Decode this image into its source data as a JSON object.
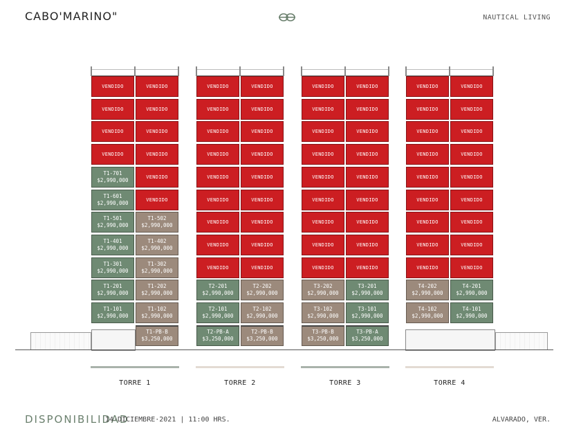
{
  "header": {
    "brand": "CABO'MARINO\"",
    "tagline": "NAUTICAL LIVING",
    "logo_icon": "knot-icon"
  },
  "colors": {
    "sold": "#cc1e22",
    "available_green": "#6f8a73",
    "available_taupe": "#9c8a7c"
  },
  "sold_label": "VENDIDO",
  "towers": [
    {
      "name": "TORRE 1",
      "bar_color": "#a9b2ab",
      "units": [
        [
          {
            "s": "sold"
          },
          {
            "s": "sold"
          }
        ],
        [
          {
            "s": "sold"
          },
          {
            "s": "sold"
          }
        ],
        [
          {
            "s": "sold"
          },
          {
            "s": "sold"
          }
        ],
        [
          {
            "s": "sold"
          },
          {
            "s": "sold"
          }
        ],
        [
          {
            "s": "green",
            "id": "T1-701",
            "price": "$2,990,000"
          },
          {
            "s": "sold"
          }
        ],
        [
          {
            "s": "green",
            "id": "T1-601",
            "price": "$2,990,000"
          },
          {
            "s": "sold"
          }
        ],
        [
          {
            "s": "green",
            "id": "T1-501",
            "price": "$2,990,000"
          },
          {
            "s": "taupe",
            "id": "T1-502",
            "price": "$2,990,000"
          }
        ],
        [
          {
            "s": "green",
            "id": "T1-401",
            "price": "$2,990,000"
          },
          {
            "s": "taupe",
            "id": "T1-402",
            "price": "$2,990,000"
          }
        ],
        [
          {
            "s": "green",
            "id": "T1-301",
            "price": "$2,990,000"
          },
          {
            "s": "taupe",
            "id": "T1-302",
            "price": "$2,990,000"
          }
        ],
        [
          {
            "s": "green",
            "id": "T1-201",
            "price": "$2,990,000"
          },
          {
            "s": "taupe",
            "id": "T1-202",
            "price": "$2,990,000"
          }
        ],
        [
          {
            "s": "green",
            "id": "T1-101",
            "price": "$2,990,000"
          },
          {
            "s": "taupe",
            "id": "T1-102",
            "price": "$2,990,000"
          }
        ],
        [
          {
            "s": "none"
          },
          {
            "s": "taupe",
            "id": "T1-PB-B",
            "price": "$3,250,000"
          }
        ]
      ]
    },
    {
      "name": "TORRE 2",
      "bar_color": "#e3dbd3",
      "units": [
        [
          {
            "s": "sold"
          },
          {
            "s": "sold"
          }
        ],
        [
          {
            "s": "sold"
          },
          {
            "s": "sold"
          }
        ],
        [
          {
            "s": "sold"
          },
          {
            "s": "sold"
          }
        ],
        [
          {
            "s": "sold"
          },
          {
            "s": "sold"
          }
        ],
        [
          {
            "s": "sold"
          },
          {
            "s": "sold"
          }
        ],
        [
          {
            "s": "sold"
          },
          {
            "s": "sold"
          }
        ],
        [
          {
            "s": "sold"
          },
          {
            "s": "sold"
          }
        ],
        [
          {
            "s": "sold"
          },
          {
            "s": "sold"
          }
        ],
        [
          {
            "s": "sold"
          },
          {
            "s": "sold"
          }
        ],
        [
          {
            "s": "green",
            "id": "T2-201",
            "price": "$2,990,000"
          },
          {
            "s": "taupe",
            "id": "T2-202",
            "price": "$2,990,000"
          }
        ],
        [
          {
            "s": "green",
            "id": "T2-101",
            "price": "$2,990,000"
          },
          {
            "s": "taupe",
            "id": "T2-102",
            "price": "$2,990,000"
          }
        ],
        [
          {
            "s": "green",
            "id": "T2-PB-A",
            "price": "$3,250,000"
          },
          {
            "s": "taupe",
            "id": "T2-PB-B",
            "price": "$3,250,000"
          }
        ]
      ]
    },
    {
      "name": "TORRE 3",
      "bar_color": "#a9b2ab",
      "units": [
        [
          {
            "s": "sold"
          },
          {
            "s": "sold"
          }
        ],
        [
          {
            "s": "sold"
          },
          {
            "s": "sold"
          }
        ],
        [
          {
            "s": "sold"
          },
          {
            "s": "sold"
          }
        ],
        [
          {
            "s": "sold"
          },
          {
            "s": "sold"
          }
        ],
        [
          {
            "s": "sold"
          },
          {
            "s": "sold"
          }
        ],
        [
          {
            "s": "sold"
          },
          {
            "s": "sold"
          }
        ],
        [
          {
            "s": "sold"
          },
          {
            "s": "sold"
          }
        ],
        [
          {
            "s": "sold"
          },
          {
            "s": "sold"
          }
        ],
        [
          {
            "s": "sold"
          },
          {
            "s": "sold"
          }
        ],
        [
          {
            "s": "taupe",
            "id": "T3-202",
            "price": "$2,990,000"
          },
          {
            "s": "green",
            "id": "T3-201",
            "price": "$2,990,000"
          }
        ],
        [
          {
            "s": "taupe",
            "id": "T3-102",
            "price": "$2,990,000"
          },
          {
            "s": "green",
            "id": "T3-101",
            "price": "$2,990,000"
          }
        ],
        [
          {
            "s": "taupe",
            "id": "T3-PB-B",
            "price": "$3,250,000"
          },
          {
            "s": "green",
            "id": "T3-PB-A",
            "price": "$3,250,000"
          }
        ]
      ]
    },
    {
      "name": "TORRE 4",
      "bar_color": "#e3dbd3",
      "units": [
        [
          {
            "s": "sold"
          },
          {
            "s": "sold"
          }
        ],
        [
          {
            "s": "sold"
          },
          {
            "s": "sold"
          }
        ],
        [
          {
            "s": "sold"
          },
          {
            "s": "sold"
          }
        ],
        [
          {
            "s": "sold"
          },
          {
            "s": "sold"
          }
        ],
        [
          {
            "s": "sold"
          },
          {
            "s": "sold"
          }
        ],
        [
          {
            "s": "sold"
          },
          {
            "s": "sold"
          }
        ],
        [
          {
            "s": "sold"
          },
          {
            "s": "sold"
          }
        ],
        [
          {
            "s": "sold"
          },
          {
            "s": "sold"
          }
        ],
        [
          {
            "s": "sold"
          },
          {
            "s": "sold"
          }
        ],
        [
          {
            "s": "taupe",
            "id": "T4-202",
            "price": "$2,990,000"
          },
          {
            "s": "green",
            "id": "T4-201",
            "price": "$2,990,000"
          }
        ],
        [
          {
            "s": "taupe",
            "id": "T4-102",
            "price": "$2,990,000"
          },
          {
            "s": "green",
            "id": "T4-101",
            "price": "$2,990,000"
          }
        ],
        [
          {
            "s": "none"
          },
          {
            "s": "none"
          }
        ]
      ]
    }
  ],
  "footer": {
    "title": "DISPONIBILIDAD",
    "date": "14·DICIEMBRE·2021 | 11:00 HRS.",
    "location": "ALVARADO, VER."
  }
}
